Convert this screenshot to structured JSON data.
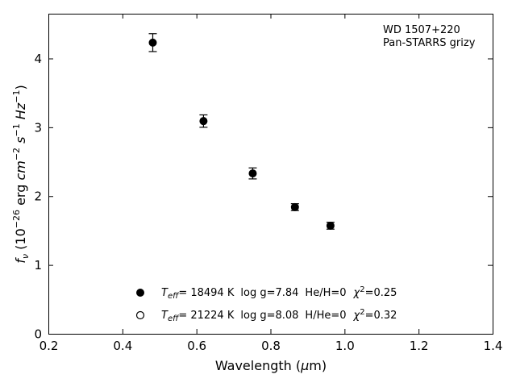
{
  "chart_data": {
    "type": "scatter",
    "title": "",
    "xlabel": "Wavelength (μm)",
    "ylabel": "f_ν (10^-26 erg cm^-2 s^-1 Hz^-1)",
    "xlim": [
      0.2,
      1.4
    ],
    "ylim": [
      0,
      4.65
    ],
    "xticks": [
      "0.2",
      "0.4",
      "0.6",
      "0.8",
      "1.0",
      "1.2",
      "1.4"
    ],
    "yticks": [
      "0",
      "1",
      "2",
      "3",
      "4"
    ],
    "grid": false,
    "annotation": [
      "WD 1507+220",
      "Pan-STARRS grizy"
    ],
    "series": [
      {
        "marker": "filled-circle",
        "x": [
          0.482,
          0.619,
          0.752,
          0.866,
          0.962
        ],
        "y": [
          4.23,
          3.09,
          2.33,
          1.84,
          1.57
        ],
        "yerr": [
          0.13,
          0.09,
          0.08,
          0.05,
          0.05
        ]
      },
      {
        "marker": "open-circle",
        "x": [],
        "y": []
      }
    ],
    "legend": {
      "placement": "lower-center",
      "entries": [
        {
          "teff": "= 18494 K",
          "logg": "log g=7.84",
          "comp": "He/H=0",
          "chi2": "=0.25"
        },
        {
          "teff": "= 21224 K",
          "logg": "log g=8.08",
          "comp": "H/He=0",
          "chi2": "=0.32"
        }
      ]
    }
  }
}
